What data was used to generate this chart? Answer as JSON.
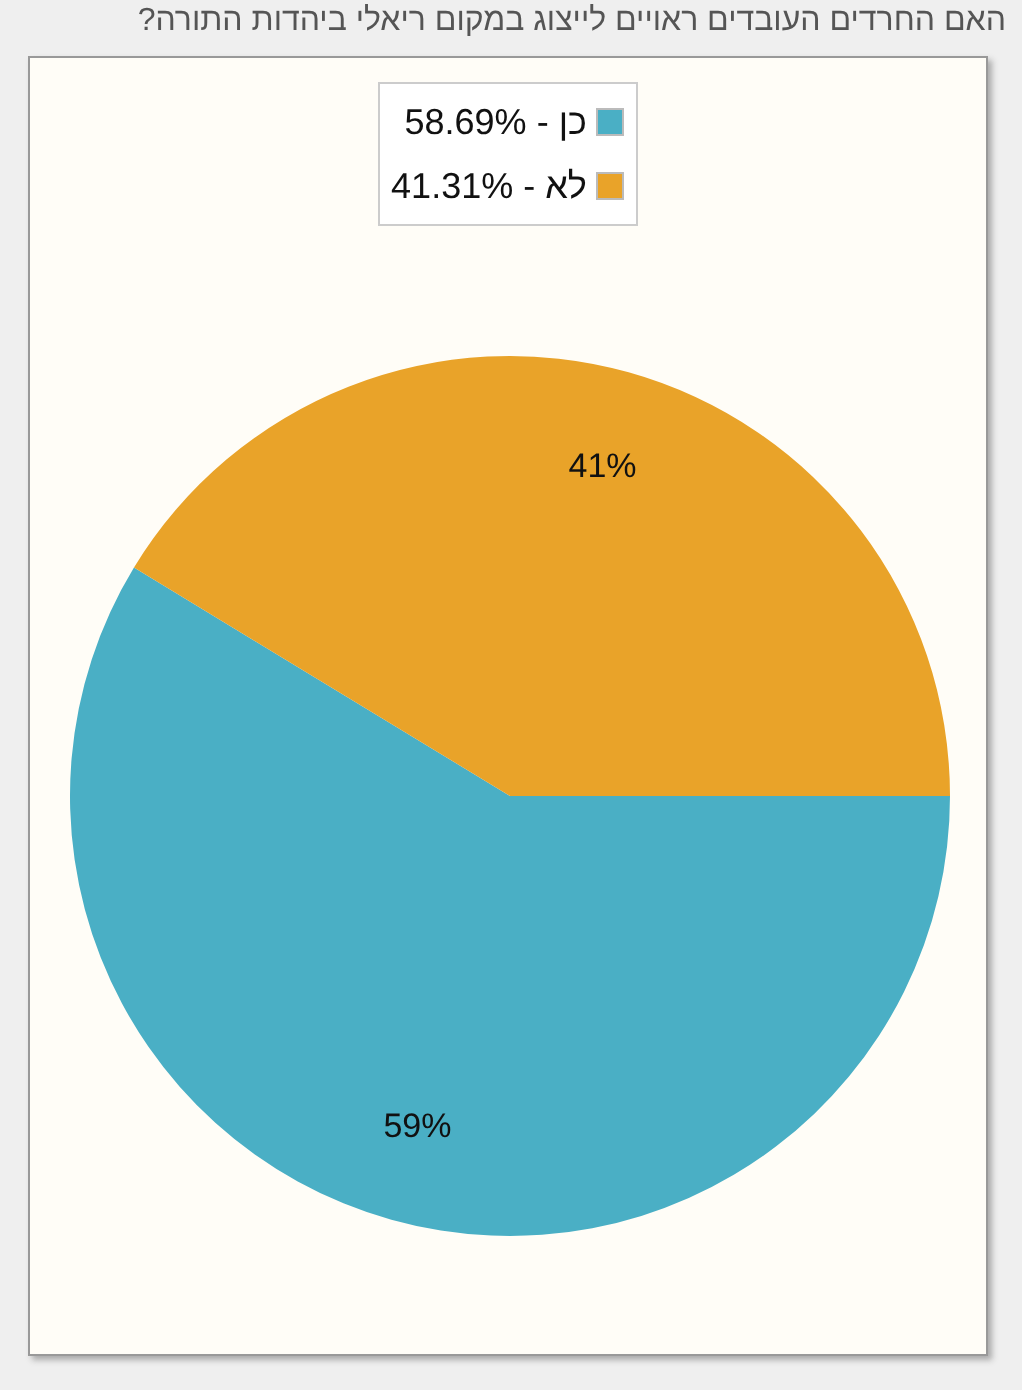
{
  "chart_data": {
    "type": "pie",
    "title": "האם החרדים העובדים ראויים לייצוג במקום ריאלי ביהדות התורה?",
    "categories": [
      "כן - 58.69%",
      "לא - 41.31%"
    ],
    "values": [
      58.69,
      41.31
    ],
    "colors": [
      "#4aafc5",
      "#e9a329"
    ],
    "value_labels": [
      "59%",
      "41%"
    ],
    "legend": "top"
  }
}
